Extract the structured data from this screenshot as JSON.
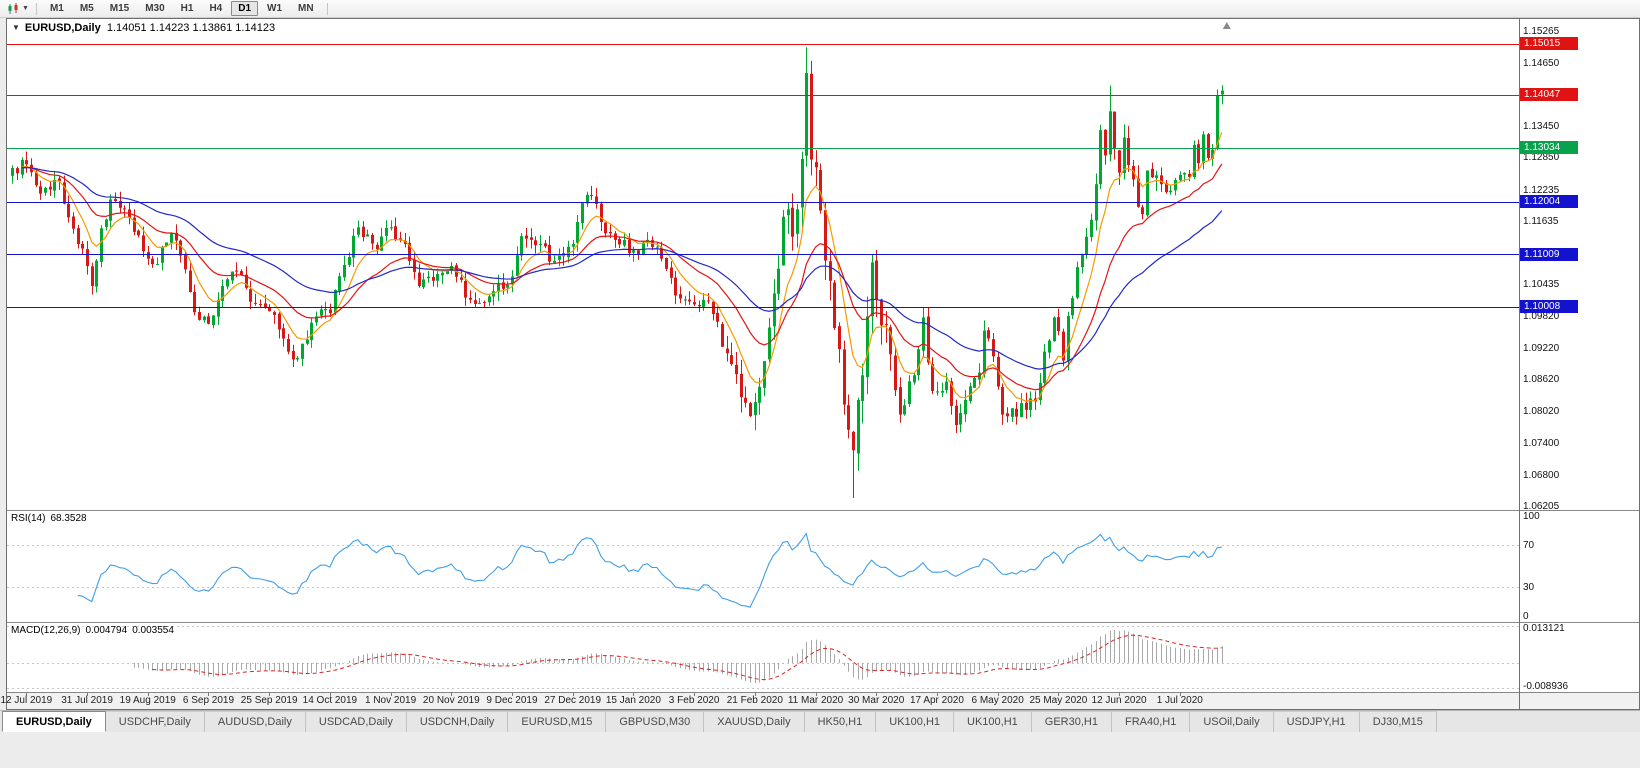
{
  "toolbar": {
    "timeframes": [
      "M1",
      "M5",
      "M15",
      "M30",
      "H1",
      "H4",
      "D1",
      "W1",
      "MN"
    ],
    "active_timeframe": "D1"
  },
  "chart_data": {
    "type": "candlestick",
    "symbol": "EURUSD",
    "timeframe": "Daily",
    "title_symbol_display": "EURUSD,Daily",
    "title_ohlc": "1.14051 1.14223 1.13861 1.14123",
    "last_candle": {
      "open": 1.14051,
      "high": 1.14223,
      "low": 1.13861,
      "close": 1.14123
    },
    "price_axis": {
      "max": 1.1545,
      "min": 1.0617,
      "labels": [
        "1.15265",
        "1.14650",
        "1.13450",
        "1.12850",
        "1.12235",
        "1.11635",
        "1.10435",
        "1.09820",
        "1.09220",
        "1.08620",
        "1.08020",
        "1.07400",
        "1.06800",
        "1.06205"
      ]
    },
    "levels": [
      {
        "price": 1.15015,
        "label": "1.15015",
        "color": "#e01313"
      },
      {
        "price": 1.14047,
        "label": "1.14047",
        "color": "#e01313"
      },
      {
        "price": 1.13034,
        "label": "1.13034",
        "color": "#07a24b"
      },
      {
        "price": 1.12004,
        "label": "1.12004",
        "color": "#1313cf"
      },
      {
        "price": 1.11009,
        "label": "1.11009",
        "color": "#1313cf"
      },
      {
        "price": 1.10008,
        "label": "1.10008",
        "color": "#1313cf"
      }
    ],
    "candles": {
      "count": 260,
      "spacing_frac": 0.803,
      "body_width": 3,
      "up_color": "#00a832",
      "down_color": "#d81717"
    },
    "anchors": [
      [
        0,
        1.1265
      ],
      [
        3,
        1.1272
      ],
      [
        6,
        1.1216
      ],
      [
        10,
        1.124
      ],
      [
        14,
        1.112
      ],
      [
        16,
        1.1078
      ],
      [
        17,
        1.104
      ],
      [
        19,
        1.115
      ],
      [
        21,
        1.1205
      ],
      [
        25,
        1.117
      ],
      [
        29,
        1.1092
      ],
      [
        31,
        1.1082
      ],
      [
        34,
        1.114
      ],
      [
        36,
        1.1098
      ],
      [
        39,
        1.099
      ],
      [
        42,
        1.0968
      ],
      [
        45,
        1.104
      ],
      [
        48,
        1.1068
      ],
      [
        51,
        1.101
      ],
      [
        55,
        1.0992
      ],
      [
        58,
        1.094
      ],
      [
        60,
        1.09
      ],
      [
        62,
        1.093
      ],
      [
        65,
        1.0982
      ],
      [
        68,
        1.0988
      ],
      [
        71,
        1.108
      ],
      [
        74,
        1.1152
      ],
      [
        78,
        1.111
      ],
      [
        81,
        1.1152
      ],
      [
        84,
        1.112
      ],
      [
        87,
        1.104
      ],
      [
        90,
        1.105
      ],
      [
        94,
        1.1078
      ],
      [
        97,
        1.1018
      ],
      [
        100,
        1.1008
      ],
      [
        103,
        1.103
      ],
      [
        107,
        1.1058
      ],
      [
        109,
        1.1135
      ],
      [
        111,
        1.1128
      ],
      [
        113,
        1.112
      ],
      [
        116,
        1.1088
      ],
      [
        120,
        1.112
      ],
      [
        122,
        1.1198
      ],
      [
        124,
        1.1212
      ],
      [
        126,
        1.1162
      ],
      [
        129,
        1.1128
      ],
      [
        133,
        1.1108
      ],
      [
        136,
        1.1128
      ],
      [
        139,
        1.1092
      ],
      [
        142,
        1.1022
      ],
      [
        146,
        1.1005
      ],
      [
        149,
        1.1012
      ],
      [
        151,
        1.0972
      ],
      [
        153,
        1.0912
      ],
      [
        155,
        1.0872
      ],
      [
        158,
        1.0792
      ],
      [
        160,
        1.0848
      ],
      [
        163,
        1.1026
      ],
      [
        165,
        1.1172
      ],
      [
        167,
        1.1134
      ],
      [
        169,
        1.1282
      ],
      [
        170,
        1.1446
      ],
      [
        171,
        1.1281
      ],
      [
        173,
        1.1184
      ],
      [
        175,
        1.105
      ],
      [
        177,
        1.092
      ],
      [
        179,
        1.0766
      ],
      [
        180,
        1.0727
      ],
      [
        182,
        1.087
      ],
      [
        184,
        1.1085
      ],
      [
        186,
        1.0965
      ],
      [
        188,
        1.091
      ],
      [
        190,
        1.0795
      ],
      [
        193,
        1.087
      ],
      [
        195,
        1.098
      ],
      [
        197,
        1.084
      ],
      [
        200,
        1.0858
      ],
      [
        202,
        1.0775
      ],
      [
        204,
        1.0823
      ],
      [
        207,
        1.0875
      ],
      [
        208,
        1.0955
      ],
      [
        210,
        1.0906
      ],
      [
        212,
        1.0795
      ],
      [
        214,
        1.0807
      ],
      [
        217,
        1.0804
      ],
      [
        219,
        1.082
      ],
      [
        221,
        1.0915
      ],
      [
        223,
        1.098
      ],
      [
        225,
        1.0898
      ],
      [
        226,
        1.0983
      ],
      [
        228,
        1.1076
      ],
      [
        229,
        1.1101
      ],
      [
        230,
        1.1134
      ],
      [
        232,
        1.1234
      ],
      [
        233,
        1.1337
      ],
      [
        234,
        1.1289
      ],
      [
        235,
        1.1373
      ],
      [
        236,
        1.1301
      ],
      [
        237,
        1.1256
      ],
      [
        238,
        1.1323
      ],
      [
        240,
        1.1243
      ],
      [
        242,
        1.1177
      ],
      [
        243,
        1.126
      ],
      [
        245,
        1.1251
      ],
      [
        247,
        1.1219
      ],
      [
        249,
        1.1242
      ],
      [
        250,
        1.1252
      ],
      [
        252,
        1.1248
      ],
      [
        253,
        1.1309
      ],
      [
        254,
        1.1274
      ],
      [
        255,
        1.1329
      ],
      [
        256,
        1.1284
      ],
      [
        257,
        1.13
      ],
      [
        258,
        1.1404
      ],
      [
        259,
        1.14123
      ]
    ],
    "specials": {
      "170": {
        "high": 1.1495
      },
      "180": {
        "low": 1.0636
      },
      "235": {
        "high": 1.1422
      },
      "259": {
        "open": 1.14051,
        "high": 1.14223,
        "low": 1.13861,
        "close": 1.14123
      }
    },
    "vol_zones": [
      [
        0,
        150,
        0.9
      ],
      [
        151,
        163,
        1.5
      ],
      [
        164,
        190,
        2.2
      ],
      [
        191,
        228,
        1.0
      ],
      [
        229,
        246,
        1.3
      ],
      [
        247,
        258,
        0.8
      ]
    ],
    "base_vol": 0.004,
    "moving_averages": [
      {
        "type": "ema",
        "period": 8,
        "color": "#f59a00"
      },
      {
        "type": "ema",
        "period": 21,
        "color": "#e51414"
      },
      {
        "type": "ema",
        "period": 45,
        "color": "#2428c8"
      }
    ],
    "x_axis": {
      "start_index": 3,
      "step": 13,
      "labels": [
        "12 Jul 2019",
        "31 Jul 2019",
        "19 Aug 2019",
        "6 Sep 2019",
        "25 Sep 2019",
        "14 Oct 2019",
        "1 Nov 2019",
        "20 Nov 2019",
        "9 Dec 2019",
        "27 Dec 2019",
        "15 Jan 2020",
        "3 Feb 2020",
        "21 Feb 2020",
        "11 Mar 2020",
        "30 Mar 2020",
        "17 Apr 2020",
        "6 May 2020",
        "25 May 2020",
        "12 Jun 2020",
        "1 Jul 2020"
      ]
    },
    "indicators": {
      "rsi": {
        "label": "RSI(14)",
        "value": "68.3528",
        "period": 14,
        "color": "#3f9fe8",
        "levels": [
          {
            "value": 100,
            "label": "100"
          },
          {
            "value": 70,
            "label": "70"
          },
          {
            "value": 30,
            "label": "30"
          },
          {
            "value": 0,
            "label": "0"
          }
        ],
        "dashed_levels": [
          70,
          30
        ]
      },
      "macd": {
        "label": "MACD(12,26,9)",
        "main_value": "0.004794",
        "signal_value": "0.003554",
        "fast": 12,
        "slow": 26,
        "signal": 9,
        "hist_color": "#a8a8a8",
        "signal_color": "#dd2222",
        "axis_max": {
          "value": 0.013121,
          "label": "0.013121"
        },
        "axis_min": {
          "value": -0.008936,
          "label": "-0.008936"
        }
      }
    },
    "shift_marker_color": "#8a8a8a"
  },
  "tabs": {
    "active_index": 0,
    "labels": [
      "EURUSD,Daily",
      "USDCHF,Daily",
      "AUDUSD,Daily",
      "USDCAD,Daily",
      "USDCNH,Daily",
      "EURUSD,M15",
      "GBPUSD,M30",
      "XAUUSD,Daily",
      "HK50,H1",
      "UK100,H1",
      "UK100,H1",
      "GER30,H1",
      "FRA40,H1",
      "USOil,Daily",
      "USDJPY,H1",
      "DJ30,M15"
    ]
  }
}
